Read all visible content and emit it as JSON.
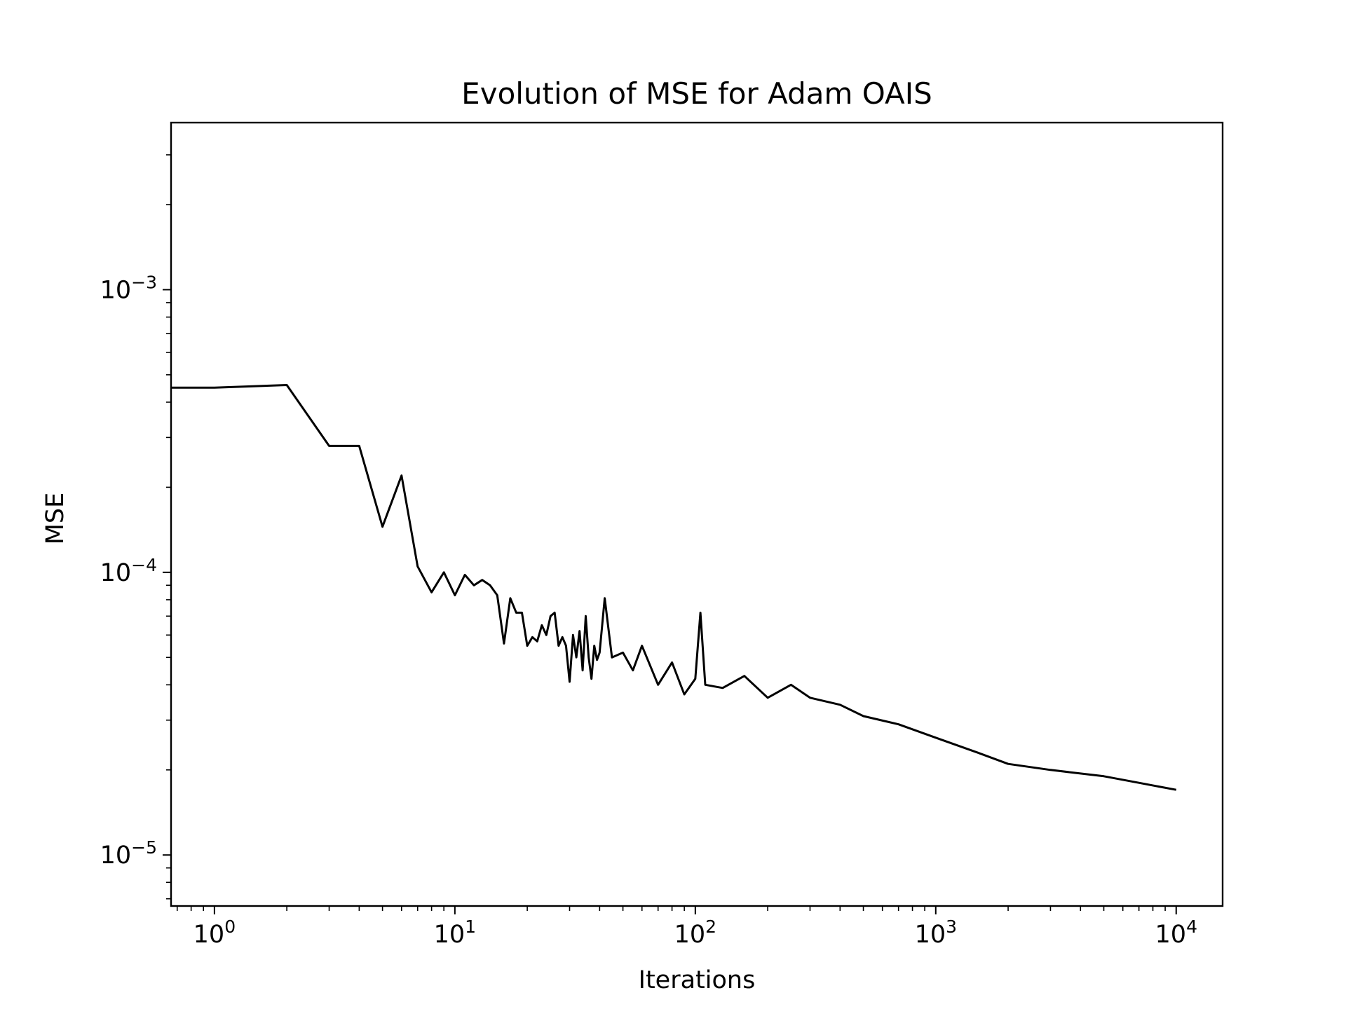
{
  "chart_data": {
    "type": "line",
    "title": "Evolution of MSE for Adam OAIS",
    "xlabel": "Iterations",
    "ylabel": "MSE",
    "xscale": "log",
    "yscale": "log",
    "xlim": [
      0.66,
      15600
    ],
    "ylim": [
      6.6e-06,
      0.0039
    ],
    "grid": false,
    "line_color": "#000000",
    "x_ticks": [
      {
        "value": 1,
        "base": "10",
        "exp": "0"
      },
      {
        "value": 10,
        "base": "10",
        "exp": "1"
      },
      {
        "value": 100,
        "base": "10",
        "exp": "2"
      },
      {
        "value": 1000,
        "base": "10",
        "exp": "3"
      },
      {
        "value": 10000,
        "base": "10",
        "exp": "4"
      }
    ],
    "y_ticks": [
      {
        "value": 1e-05,
        "base": "10",
        "exp": "−5"
      },
      {
        "value": 0.0001,
        "base": "10",
        "exp": "−4"
      },
      {
        "value": 0.001,
        "base": "10",
        "exp": "−3"
      }
    ],
    "series": [
      {
        "x": [
          0,
          1,
          2,
          3,
          4,
          5,
          6,
          7,
          8,
          9,
          10,
          11,
          12,
          13,
          14,
          15,
          16,
          17,
          18,
          19,
          20,
          21,
          22,
          23,
          24,
          25,
          26,
          27,
          28,
          29,
          30,
          31,
          32,
          33,
          34,
          35,
          36,
          37,
          38,
          39,
          40,
          42,
          45,
          50,
          55,
          60,
          70,
          80,
          90,
          100,
          105,
          110,
          130,
          160,
          200,
          250,
          300,
          400,
          500,
          700,
          1000,
          1500,
          2000,
          3000,
          5000,
          7000,
          10000
        ],
        "y": [
          0.00045,
          0.00045,
          0.00046,
          0.00028,
          0.00028,
          0.000145,
          0.00022,
          0.000105,
          8.5e-05,
          0.0001,
          8.3e-05,
          9.8e-05,
          9e-05,
          9.4e-05,
          9e-05,
          8.3e-05,
          5.6e-05,
          8.1e-05,
          7.2e-05,
          7.2e-05,
          5.5e-05,
          5.9e-05,
          5.7e-05,
          6.5e-05,
          6e-05,
          7e-05,
          7.2e-05,
          5.5e-05,
          5.9e-05,
          5.5e-05,
          4.1e-05,
          6e-05,
          5e-05,
          6.2e-05,
          4.5e-05,
          7e-05,
          5e-05,
          4.2e-05,
          5.5e-05,
          4.9e-05,
          5.2e-05,
          8.1e-05,
          5e-05,
          5.2e-05,
          4.5e-05,
          5.5e-05,
          4e-05,
          4.8e-05,
          3.7e-05,
          4.2e-05,
          7.2e-05,
          4e-05,
          3.9e-05,
          4.3e-05,
          3.6e-05,
          4e-05,
          3.6e-05,
          3.4e-05,
          3.1e-05,
          2.9e-05,
          2.6e-05,
          2.3e-05,
          2.1e-05,
          2e-05,
          1.9e-05,
          1.8e-05,
          1.7e-05
        ]
      }
    ]
  }
}
